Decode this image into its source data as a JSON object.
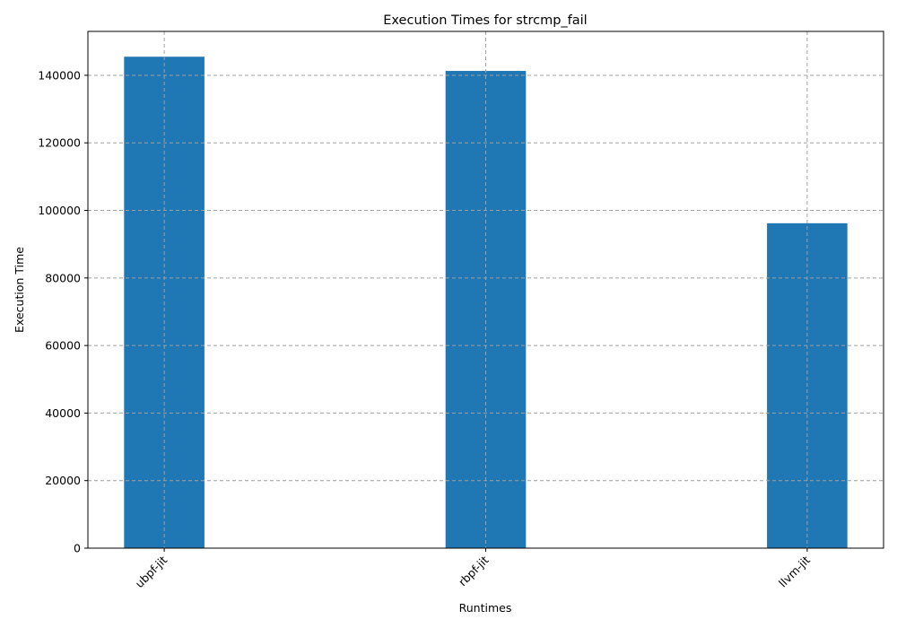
{
  "chart_data": {
    "type": "bar",
    "title": "Execution Times for strcmp_fail",
    "xlabel": "Runtimes",
    "ylabel": "Execution Time",
    "categories": [
      "ubpf-jit",
      "rbpf-jit",
      "llvm-jit"
    ],
    "values": [
      145500,
      141300,
      96200
    ],
    "ylim": [
      0,
      153000
    ],
    "yticks": [
      0,
      20000,
      40000,
      60000,
      80000,
      100000,
      120000,
      140000
    ],
    "grid": true,
    "bar_color": "#1f77b4",
    "grid_color": "#a0a0a0",
    "xtick_rotation_deg": 45
  }
}
